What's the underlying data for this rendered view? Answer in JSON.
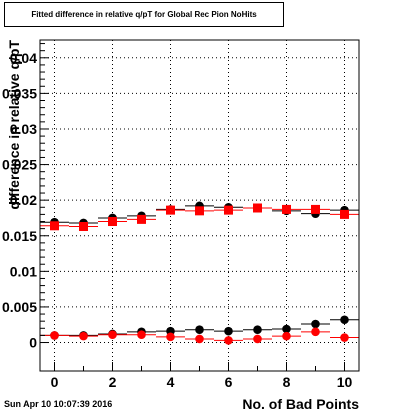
{
  "timestamp": "Sun Apr 10 10:07:39 2016",
  "chart_data": {
    "type": "scatter",
    "title": "Fitted difference in relative q/pT for Global Rec Pion NoHits",
    "xlabel": "No. of Bad Points",
    "ylabel": "difference in relative q/pT",
    "xlim": [
      -0.5,
      10.5
    ],
    "ylim": [
      -0.004,
      0.0425
    ],
    "xticks": [
      0,
      2,
      4,
      6,
      8,
      10
    ],
    "yticks": [
      0,
      0.005,
      0.01,
      0.015,
      0.02,
      0.025,
      0.03,
      0.035,
      0.04
    ],
    "ytick_labels": [
      "0",
      "0.005",
      "0.01",
      "0.015",
      "0.02",
      "0.025",
      "0.03",
      "0.035",
      "0.04"
    ],
    "grid": true,
    "series": [
      {
        "color": "#000000",
        "marker": "circle",
        "x": [
          0,
          1,
          2,
          3,
          4,
          5,
          6,
          7,
          8,
          9,
          10
        ],
        "y": [
          0.0169,
          0.0168,
          0.0175,
          0.0178,
          0.0187,
          0.0192,
          0.019,
          0.0189,
          0.0185,
          0.0181,
          0.0186
        ]
      },
      {
        "color": "#ff0000",
        "marker": "square",
        "x": [
          0,
          1,
          2,
          3,
          4,
          5,
          6,
          7,
          8,
          9,
          10
        ],
        "y": [
          0.0164,
          0.0163,
          0.017,
          0.0173,
          0.0186,
          0.0185,
          0.0186,
          0.0189,
          0.0187,
          0.0187,
          0.018
        ]
      },
      {
        "color": "#000000",
        "marker": "circle",
        "x": [
          0,
          1,
          2,
          3,
          4,
          5,
          6,
          7,
          8,
          9,
          10
        ],
        "y": [
          0.001,
          0.001,
          0.0012,
          0.0015,
          0.0016,
          0.0018,
          0.0016,
          0.0018,
          0.0019,
          0.0026,
          0.0032
        ]
      },
      {
        "color": "#ff0000",
        "marker": "circle",
        "x": [
          0,
          1,
          2,
          3,
          4,
          5,
          6,
          7,
          8,
          9,
          10
        ],
        "y": [
          0.001,
          0.0009,
          0.0011,
          0.0011,
          0.0008,
          0.0005,
          0.0003,
          0.0005,
          0.0009,
          0.0015,
          0.0007
        ]
      }
    ]
  }
}
